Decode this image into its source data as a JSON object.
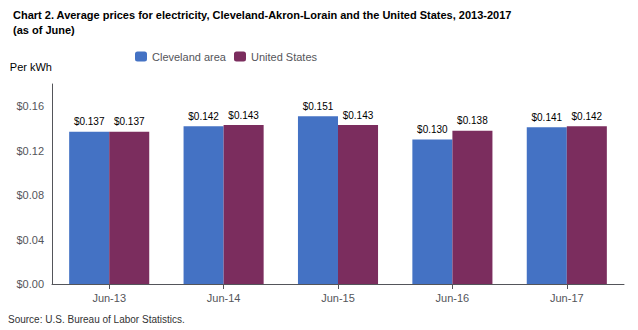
{
  "chart_data": {
    "type": "bar",
    "title": "Chart 2. Average prices for electricity, Cleveland-Akron-Lorain and the United States, 2013-2017",
    "subtitle": "(as of June)",
    "ylabel": "Per kWh",
    "annotations": [
      "Source: U.S. Bureau of Labor Statistics."
    ],
    "categories": [
      "Jun-13",
      "Jun-14",
      "Jun-15",
      "Jun-16",
      "Jun-17"
    ],
    "series": [
      {
        "name": "Cleveland area",
        "color": "#4472C4",
        "values": [
          0.137,
          0.142,
          0.151,
          0.13,
          0.141
        ],
        "value_labels": [
          "$0.137",
          "$0.142",
          "$0.151",
          "$0.130",
          "$0.141"
        ]
      },
      {
        "name": "United States",
        "color": "#7B2D5E",
        "values": [
          0.137,
          0.143,
          0.143,
          0.138,
          0.142
        ],
        "value_labels": [
          "$0.137",
          "$0.143",
          "$0.143",
          "$0.138",
          "$0.142"
        ]
      }
    ],
    "ylim": [
      0,
      0.18
    ],
    "yticks": [
      {
        "value": 0.0,
        "label": "$0.00"
      },
      {
        "value": 0.04,
        "label": "$0.04"
      },
      {
        "value": 0.08,
        "label": "$0.08"
      },
      {
        "value": 0.12,
        "label": "$0.12"
      },
      {
        "value": 0.16,
        "label": "$0.16"
      }
    ],
    "grid": false,
    "legend": "top",
    "data_labels": true
  }
}
